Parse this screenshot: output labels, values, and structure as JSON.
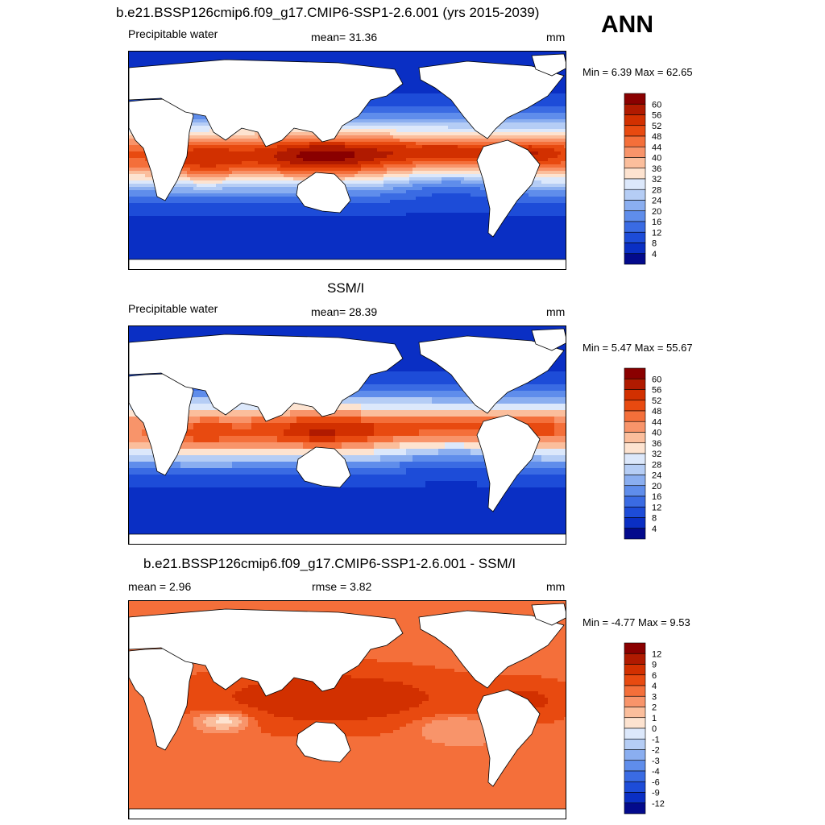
{
  "header": {
    "main_title": "b.e21.BSSP126cmip6.f09_g17.CMIP6-SSP1-2.6.001 (yrs 2015-2039)",
    "season": "ANN"
  },
  "panels": [
    {
      "id": "model",
      "title": "",
      "left_label": "Precipitable water",
      "center_label": "mean=  31.36",
      "units": "mm",
      "minmax": "Min =   6.39 Max =  62.65",
      "colorbar_labels": [
        "60",
        "56",
        "52",
        "48",
        "44",
        "40",
        "36",
        "32",
        "28",
        "24",
        "20",
        "16",
        "12",
        "8",
        "4"
      ]
    },
    {
      "id": "obs",
      "title": "SSM/I",
      "left_label": "Precipitable water",
      "center_label": "mean=  28.39",
      "units": "mm",
      "minmax": "Min =   5.47 Max =  55.67",
      "colorbar_labels": [
        "60",
        "56",
        "52",
        "48",
        "44",
        "40",
        "36",
        "32",
        "28",
        "24",
        "20",
        "16",
        "12",
        "8",
        "4"
      ]
    },
    {
      "id": "diff",
      "title": "b.e21.BSSP126cmip6.f09_g17.CMIP6-SSP1-2.6.001 - SSM/I",
      "left_label": "mean =   2.96",
      "center_label": "rmse =   3.82",
      "units": "mm",
      "minmax": "Min =  -4.77 Max =   9.53",
      "colorbar_labels": [
        "12",
        "9",
        "6",
        "4",
        "3",
        "2",
        "1",
        "0",
        "-1",
        "-2",
        "-3",
        "-4",
        "-6",
        "-9",
        "-12"
      ]
    }
  ],
  "colors": {
    "abs_scale": [
      "#8a0000",
      "#b01a00",
      "#d23000",
      "#e84a10",
      "#f46f3a",
      "#f8946a",
      "#fbbe9c",
      "#fde3d0",
      "#dce8fb",
      "#b5cdf5",
      "#8aaef0",
      "#5f8deb",
      "#3a6be3",
      "#1d4cd8",
      "#0a2fc4",
      "#030a8c"
    ],
    "diff_scale": [
      "#8a0000",
      "#b01a00",
      "#d23000",
      "#e84a10",
      "#f46f3a",
      "#f8946a",
      "#fbbe9c",
      "#fde3d0",
      "#dce8fb",
      "#b5cdf5",
      "#8aaef0",
      "#5f8deb",
      "#3a6be3",
      "#1d4cd8",
      "#0a2fc4",
      "#030a8c"
    ]
  },
  "chart_data": [
    {
      "type": "heatmap",
      "title": "b.e21.BSSP126cmip6.f09_g17.CMIP6-SSP1-2.6.001 (yrs 2015-2039)",
      "variable": "Precipitable water",
      "units": "mm",
      "mean": 31.36,
      "min": 6.39,
      "max": 62.65,
      "contour_levels": [
        4,
        8,
        12,
        16,
        20,
        24,
        28,
        32,
        36,
        40,
        44,
        48,
        52,
        56,
        60
      ]
    },
    {
      "type": "heatmap",
      "title": "SSM/I",
      "variable": "Precipitable water",
      "units": "mm",
      "mean": 28.39,
      "min": 5.47,
      "max": 55.67,
      "contour_levels": [
        4,
        8,
        12,
        16,
        20,
        24,
        28,
        32,
        36,
        40,
        44,
        48,
        52,
        56,
        60
      ]
    },
    {
      "type": "heatmap",
      "title": "b.e21.BSSP126cmip6.f09_g17.CMIP6-SSP1-2.6.001 - SSM/I",
      "units": "mm",
      "mean": 2.96,
      "rmse": 3.82,
      "min": -4.77,
      "max": 9.53,
      "contour_levels": [
        -12,
        -9,
        -6,
        -4,
        -3,
        -2,
        -1,
        0,
        1,
        2,
        3,
        4,
        6,
        9,
        12
      ]
    }
  ]
}
